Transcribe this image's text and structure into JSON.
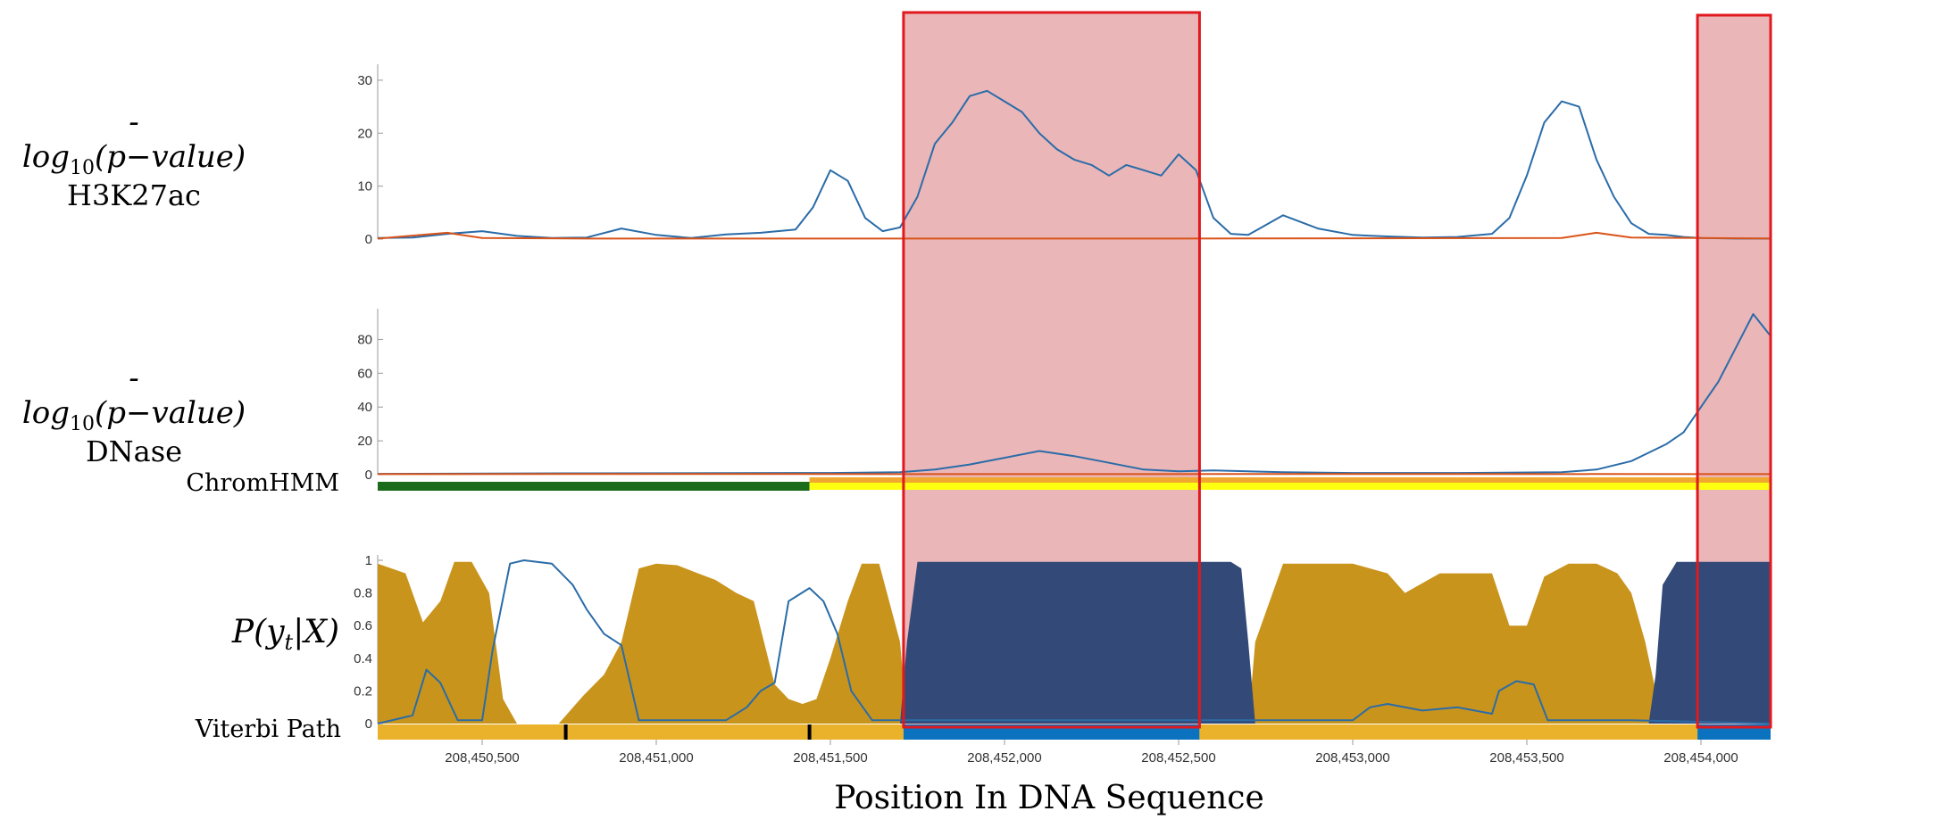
{
  "labels": {
    "h3k27ac_prefix": "-log",
    "h3k27ac_sub": "10",
    "h3k27ac_arg": "(p−value)",
    "h3k27ac_name": "H3K27ac",
    "dnase_prefix": "-log",
    "dnase_sub": "10",
    "dnase_arg": "(p−value)",
    "dnase_name": "DNase",
    "chromhmm": "ChromHMM",
    "posterior": "P(y",
    "posterior_sub": "t",
    "posterior_end": "|X)",
    "viterbi": "Viterbi Path",
    "xlabel": "Position In DNA Sequence"
  },
  "colors": {
    "blue_line": "#2a6ca8",
    "orange_line": "#d95319",
    "gold": "#c9941c",
    "navy": "#334a78",
    "highlight_fill": "#e8a9ab",
    "highlight_border": "#e0191f",
    "chrom_green": "#1a6b1a",
    "chrom_yellow": "#ffff10",
    "chrom_orange": "#f0a830",
    "viterbi_gold": "#eab12a",
    "viterbi_blue": "#0b72bf"
  },
  "chart_data": [
    {
      "type": "line",
      "name": "h3k27ac",
      "ylim": [
        0,
        32
      ],
      "yticks": [
        0,
        10,
        20,
        30
      ],
      "xlim": [
        208450200,
        208454200
      ],
      "series": [
        {
          "color": "blue",
          "x": [
            208450200,
            208450300,
            208450400,
            208450500,
            208450600,
            208450700,
            208450800,
            208450900,
            208451000,
            208451100,
            208451200,
            208451300,
            208451400,
            208451450,
            208451500,
            208451550,
            208451600,
            208451650,
            208451700,
            208451750,
            208451800,
            208451850,
            208451900,
            208451950,
            208452000,
            208452050,
            208452100,
            208452150,
            208452200,
            208452250,
            208452300,
            208452350,
            208452400,
            208452450,
            208452500,
            208452550,
            208452600,
            208452650,
            208452700,
            208452800,
            208452900,
            208453000,
            208453100,
            208453200,
            208453300,
            208453400,
            208453450,
            208453500,
            208453550,
            208453600,
            208453650,
            208453700,
            208453750,
            208453800,
            208453850,
            208453900,
            208453950,
            208454000,
            208454100,
            208454200
          ],
          "values": [
            0.2,
            0.3,
            1.0,
            1.5,
            0.6,
            0.2,
            0.3,
            2.0,
            0.8,
            0.2,
            0.9,
            1.2,
            1.8,
            6.0,
            13.0,
            11.0,
            4.0,
            1.5,
            2.2,
            8.0,
            18.0,
            22.0,
            27.0,
            28.0,
            26.0,
            24.0,
            20.0,
            17.0,
            15.0,
            14.0,
            12.0,
            14.0,
            13.0,
            12.0,
            16.0,
            13.0,
            4.0,
            1.0,
            0.8,
            4.5,
            2.0,
            0.8,
            0.5,
            0.3,
            0.4,
            1.0,
            4.0,
            12.0,
            22.0,
            26.0,
            25.0,
            15.0,
            8.0,
            3.0,
            1.0,
            0.8,
            0.4,
            0.2,
            0.1,
            0.1
          ]
        },
        {
          "color": "orange",
          "x": [
            208450200,
            208450400,
            208450500,
            208450800,
            208451500,
            208452500,
            208453600,
            208453700,
            208453800,
            208454200
          ],
          "values": [
            0.1,
            1.2,
            0.2,
            0.1,
            0.1,
            0.1,
            0.2,
            1.2,
            0.3,
            0.1
          ]
        }
      ]
    },
    {
      "type": "line",
      "name": "dnase",
      "ylim": [
        0,
        95
      ],
      "yticks": [
        0,
        20,
        40,
        60,
        80
      ],
      "xlim": [
        208450200,
        208454200
      ],
      "series": [
        {
          "color": "blue",
          "x": [
            208450200,
            208450800,
            208451500,
            208451700,
            208451800,
            208451900,
            208452000,
            208452100,
            208452200,
            208452300,
            208452400,
            208452500,
            208452600,
            208452800,
            208453000,
            208453300,
            208453600,
            208453700,
            208453800,
            208453850,
            208453900,
            208453950,
            208454000,
            208454050,
            208454100,
            208454150,
            208454200
          ],
          "values": [
            0.5,
            0.8,
            1.0,
            1.5,
            3.0,
            6.0,
            10.0,
            14.0,
            11.0,
            7.0,
            3.0,
            2.0,
            2.5,
            1.5,
            1.0,
            1.0,
            1.5,
            3.0,
            8.0,
            13.0,
            18.0,
            25.0,
            40.0,
            55.0,
            75.0,
            95.0,
            82.0
          ]
        },
        {
          "color": "orange",
          "x": [
            208450200,
            208451000,
            208452000,
            208453000,
            208454200
          ],
          "values": [
            0.3,
            0.4,
            0.3,
            0.4,
            0.3
          ]
        }
      ]
    },
    {
      "type": "area",
      "name": "posterior",
      "ylim": [
        0,
        1
      ],
      "yticks": [
        0,
        0.2,
        0.4,
        0.6,
        0.8,
        1
      ],
      "xlim": [
        208450200,
        208454200
      ],
      "series": [
        {
          "color": "gold",
          "x": [
            208450200,
            208450280,
            208450330,
            208450380,
            208450420,
            208450470,
            208450520,
            208450560,
            208450600,
            208450660,
            208450720,
            208450790,
            208450850,
            208450900,
            208450950,
            208451000,
            208451060,
            208451120,
            208451170,
            208451230,
            208451280,
            208451340,
            208451380,
            208451420,
            208451460,
            208451500,
            208451550,
            208451590,
            208451640,
            208451700,
            208451720,
            208452700,
            208452720,
            208452800,
            208452950,
            208453000,
            208453100,
            208453150,
            208453250,
            208453400,
            208453450,
            208453500,
            208453550,
            208453620,
            208453700,
            208453760,
            208453800,
            208453840,
            208453880,
            208453900,
            208454200
          ],
          "values": [
            0.98,
            0.92,
            0.62,
            0.75,
            0.99,
            0.99,
            0.8,
            0.15,
            0.0,
            0.0,
            0.0,
            0.17,
            0.3,
            0.5,
            0.95,
            0.98,
            0.97,
            0.92,
            0.88,
            0.8,
            0.75,
            0.24,
            0.15,
            0.12,
            0.15,
            0.4,
            0.75,
            0.98,
            0.98,
            0.5,
            0.0,
            0.0,
            0.5,
            0.98,
            0.98,
            0.98,
            0.92,
            0.8,
            0.92,
            0.92,
            0.6,
            0.6,
            0.9,
            0.98,
            0.98,
            0.92,
            0.8,
            0.5,
            0.1,
            0.0,
            0.0
          ]
        },
        {
          "color": "navy",
          "x": [
            208450200,
            208451700,
            208451720,
            208451750,
            208452650,
            208452680,
            208452700,
            208452720,
            208453850,
            208453870,
            208453890,
            208453930,
            208454200
          ],
          "values": [
            0,
            0,
            0.5,
            0.99,
            0.99,
            0.95,
            0.5,
            0.0,
            0.0,
            0.3,
            0.85,
            0.99,
            0.99
          ]
        },
        {
          "color": "blue",
          "x": [
            208450200,
            208450300,
            208450340,
            208450380,
            208450430,
            208450500,
            208450530,
            208450580,
            208450620,
            208450700,
            208450760,
            208450800,
            208450850,
            208450900,
            208450950,
            208451000,
            208451200,
            208451260,
            208451300,
            208451340,
            208451380,
            208451440,
            208451480,
            208451520,
            208451560,
            208451620,
            208451700,
            208452700,
            208452800,
            208452900,
            208453000,
            208453050,
            208453100,
            208453200,
            208453300,
            208453400,
            208453420,
            208453470,
            208453520,
            208453560,
            208453800,
            208454200
          ],
          "values": [
            0.0,
            0.05,
            0.33,
            0.25,
            0.02,
            0.02,
            0.45,
            0.98,
            1.0,
            0.98,
            0.85,
            0.7,
            0.55,
            0.48,
            0.02,
            0.02,
            0.02,
            0.1,
            0.2,
            0.25,
            0.75,
            0.83,
            0.75,
            0.55,
            0.2,
            0.02,
            0.02,
            0.02,
            0.02,
            0.02,
            0.02,
            0.1,
            0.12,
            0.08,
            0.1,
            0.06,
            0.2,
            0.26,
            0.24,
            0.02,
            0.02,
            0.0
          ]
        }
      ],
      "xticks": [
        208450500,
        208451000,
        208451500,
        208452000,
        208452500,
        208453000,
        208453500,
        208454000
      ],
      "xtick_labels": [
        "208,450,500",
        "208,451,000",
        "208,451,500",
        "208,452,000",
        "208,452,500",
        "208,453,000",
        "208,453,500",
        "208,454,000"
      ]
    }
  ],
  "chromhmm_track": [
    {
      "from": 208450200,
      "to": 208451440,
      "state": "green"
    },
    {
      "from": 208451440,
      "to": 208454200,
      "state": "yellow"
    }
  ],
  "viterbi_track": [
    {
      "from": 208450200,
      "to": 208451710,
      "state": "gold"
    },
    {
      "from": 208451710,
      "to": 208452560,
      "state": "blue"
    },
    {
      "from": 208452560,
      "to": 208453990,
      "state": "gold"
    },
    {
      "from": 208453990,
      "to": 208454200,
      "state": "blue"
    }
  ],
  "viterbi_marks": [
    208450740,
    208451440
  ],
  "highlights": [
    {
      "from": 208451710,
      "to": 208452560
    },
    {
      "from": 208453990,
      "to": 208454200
    }
  ]
}
